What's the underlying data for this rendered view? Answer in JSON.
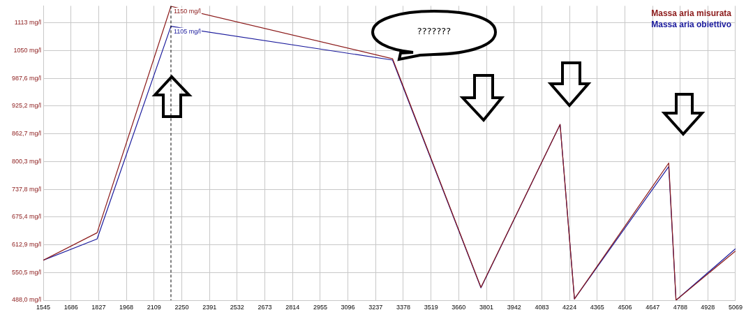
{
  "chart_data": {
    "type": "line",
    "x": [
      1545,
      1819,
      2195,
      3323,
      3773,
      4176,
      4249,
      4729,
      4766,
      5069
    ],
    "series": [
      {
        "name": "Massa aria misurata",
        "color": "#8b1a1a",
        "values": [
          578,
          640,
          1150,
          1032,
          517,
          884,
          491,
          797,
          488,
          599
        ]
      },
      {
        "name": "Massa aria obiettivo",
        "color": "#1a1a9c",
        "values": [
          578,
          626,
          1105,
          1029,
          516,
          884,
          491,
          789,
          488,
          604
        ]
      }
    ],
    "xlim": [
      1545,
      5069
    ],
    "xticks": [
      1545,
      1686,
      1827,
      1968,
      2109,
      2250,
      2391,
      2532,
      2673,
      2814,
      2955,
      3096,
      3237,
      3378,
      3519,
      3660,
      3801,
      3942,
      4083,
      4224,
      4365,
      4506,
      4647,
      4788,
      4928,
      5069
    ],
    "ylim": [
      488,
      1151
    ],
    "yticks": [
      {
        "value": 488,
        "label": "488,0 mg/l"
      },
      {
        "value": 550.5,
        "label": "550,5 mg/l"
      },
      {
        "value": 612.9,
        "label": "612,9 mg/l"
      },
      {
        "value": 675.4,
        "label": "675,4 mg/l"
      },
      {
        "value": 737.8,
        "label": "737,8 mg/l"
      },
      {
        "value": 800.3,
        "label": "800,3 mg/l"
      },
      {
        "value": 862.7,
        "label": "862,7 mg/l"
      },
      {
        "value": 925.2,
        "label": "925,2 mg/l"
      },
      {
        "value": 987.6,
        "label": "987,6 mg/l"
      },
      {
        "value": 1050,
        "label": "1050 mg/l"
      },
      {
        "value": 1113,
        "label": "1113 mg/l"
      }
    ],
    "grid": true,
    "legend": "top right",
    "marker": "none",
    "line_style": "solid",
    "ref_lines": [
      {
        "axis": "x",
        "value": 2195,
        "line_style": "dashed",
        "color": "#000000"
      }
    ],
    "annotations": [
      {
        "text": "1150 mg/l",
        "x": 2195,
        "y": 1150
      },
      {
        "text": "1105 mg/l",
        "x": 2195,
        "y": 1105
      },
      "???????"
    ]
  }
}
